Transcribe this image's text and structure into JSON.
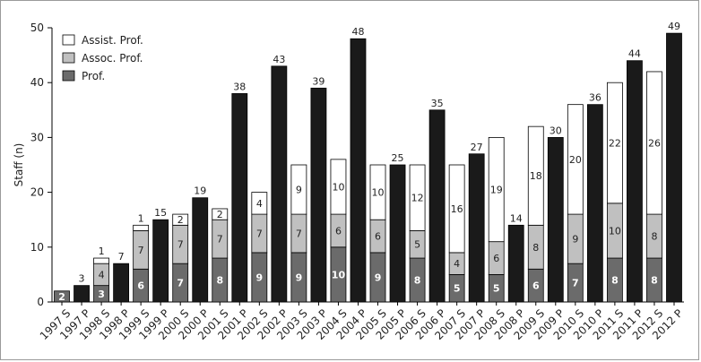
{
  "chart_data": {
    "type": "bar",
    "stacked": true,
    "ylabel": "Staff (n)",
    "xlabel": "",
    "ylim": [
      0,
      50
    ],
    "yticks": [
      0,
      10,
      20,
      30,
      40,
      50
    ],
    "grid": false,
    "legend_position": "top-left",
    "categories": [
      "1997 S",
      "1997 P",
      "1998 S",
      "1998 P",
      "1999 S",
      "1999 P",
      "2000 S",
      "2000 P",
      "2001 S",
      "2001 P",
      "2002 S",
      "2002 P",
      "2003 S",
      "2003 P",
      "2004 S",
      "2004 P",
      "2005 S",
      "2005 P",
      "2006 S",
      "2006 P",
      "2007 S",
      "2007 P",
      "2008 S",
      "2008 P",
      "2009 S",
      "2009 P",
      "2010 S",
      "2010 P",
      "2011 S",
      "2011 P",
      "2012 S",
      "2012 P"
    ],
    "series": [
      {
        "name": "Prof.",
        "color": "#6b6b6b",
        "values": [
          2,
          null,
          3,
          null,
          6,
          null,
          7,
          null,
          8,
          null,
          9,
          null,
          9,
          null,
          10,
          null,
          9,
          null,
          8,
          null,
          5,
          null,
          5,
          null,
          6,
          null,
          7,
          null,
          8,
          null,
          8,
          null
        ]
      },
      {
        "name": "Assoc. Prof.",
        "color": "#c0c0c0",
        "values": [
          0,
          null,
          4,
          null,
          7,
          null,
          7,
          null,
          7,
          null,
          7,
          null,
          7,
          null,
          6,
          null,
          6,
          null,
          5,
          null,
          4,
          null,
          6,
          null,
          8,
          null,
          9,
          null,
          10,
          null,
          8,
          null
        ]
      },
      {
        "name": "Assist. Prof.",
        "color": "#ffffff",
        "values": [
          0,
          null,
          1,
          null,
          1,
          null,
          2,
          null,
          2,
          null,
          4,
          null,
          9,
          null,
          10,
          null,
          10,
          null,
          12,
          null,
          16,
          null,
          19,
          null,
          18,
          null,
          20,
          null,
          22,
          null,
          26,
          null
        ]
      }
    ],
    "totals_series": {
      "color": "#1a1a1a",
      "values": [
        null,
        3,
        null,
        7,
        null,
        15,
        null,
        19,
        null,
        38,
        null,
        43,
        null,
        39,
        null,
        48,
        null,
        25,
        null,
        35,
        null,
        27,
        null,
        14,
        null,
        30,
        null,
        36,
        null,
        44,
        null,
        49
      ]
    },
    "segment_labels": {
      "1997 S": [
        "2",
        "",
        ""
      ],
      "1998 S": [
        "3",
        "4",
        ""
      ],
      "1999 S": [
        "6",
        "7",
        ""
      ],
      "2000 S": [
        "7",
        "7",
        "2"
      ],
      "2001 S": [
        "8",
        "7",
        "2"
      ],
      "2002 S": [
        "9",
        "7",
        "4"
      ],
      "2003 S": [
        "9",
        "7",
        "9"
      ],
      "2004 S": [
        "10",
        "6",
        "10"
      ],
      "2005 S": [
        "9",
        "6",
        "10"
      ],
      "2006 S": [
        "8",
        "5",
        "12"
      ],
      "2007 S": [
        "5",
        "4",
        "16"
      ],
      "2008 S": [
        "5",
        "6",
        "19"
      ],
      "2009 S": [
        "6",
        "8",
        "18"
      ],
      "2010 S": [
        "7",
        "9",
        "20"
      ],
      "2011 S": [
        "8",
        "10",
        "22"
      ],
      "2012 S": [
        "8",
        "8",
        "26"
      ]
    },
    "top_labels": {
      "1997 P": "3",
      "1998 S": "1",
      "1998 P": "7",
      "1999 S": "1",
      "1999 P": "15",
      "2000 P": "19",
      "2001 P": "38",
      "2002 P": "43",
      "2003 P": "39",
      "2004 P": "48",
      "2005 P": "25",
      "2006 P": "35",
      "2007 P": "27",
      "2008 P": "14",
      "2009 P": "30",
      "2010 P": "36",
      "2011 P": "44",
      "2012 P": "49"
    }
  }
}
